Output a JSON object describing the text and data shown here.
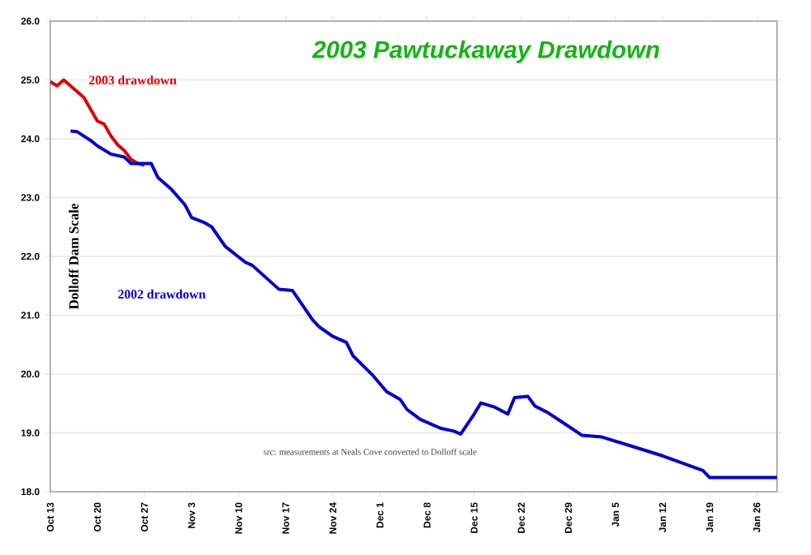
{
  "chart_data": {
    "type": "line",
    "title": "2003 Pawtuckaway Drawdown",
    "ylabel": "Dolloff Dam Scale",
    "annotations": [
      "src: measurements at Neals Cove converted to Dolloff scale"
    ],
    "series": [
      {
        "name": "2003 drawdown",
        "color": "#dd0000",
        "x": [
          "2002-10-13",
          "2002-10-14",
          "2002-10-15",
          "2002-10-18",
          "2002-10-19",
          "2002-10-20",
          "2002-10-21",
          "2002-10-22",
          "2002-10-23",
          "2002-10-24",
          "2002-10-25",
          "2002-10-26",
          "2002-10-27"
        ],
        "values": [
          24.97,
          24.9,
          25.0,
          24.7,
          24.5,
          24.3,
          24.25,
          24.05,
          23.9,
          23.8,
          23.65,
          23.58,
          23.55
        ]
      },
      {
        "name": "2002 drawdown",
        "color": "#0000cc",
        "x": [
          "2002-10-16",
          "2002-10-17",
          "2002-10-19",
          "2002-10-20",
          "2002-10-22",
          "2002-10-24",
          "2002-10-25",
          "2002-10-28",
          "2002-10-29",
          "2002-10-31",
          "2002-11-02",
          "2002-11-03",
          "2002-11-05",
          "2002-11-06",
          "2002-11-08",
          "2002-11-10",
          "2002-11-11",
          "2002-11-12",
          "2002-11-16",
          "2002-11-18",
          "2002-11-21",
          "2002-11-22",
          "2002-11-24",
          "2002-11-26",
          "2002-11-27",
          "2002-11-30",
          "2002-12-02",
          "2002-12-04",
          "2002-12-05",
          "2002-12-07",
          "2002-12-10",
          "2002-12-12",
          "2002-12-13",
          "2002-12-15",
          "2002-12-16",
          "2002-12-18",
          "2002-12-20",
          "2002-12-21",
          "2002-12-23",
          "2002-12-24",
          "2002-12-26",
          "2002-12-28",
          "2002-12-31",
          "2003-01-03",
          "2003-01-12",
          "2003-01-18",
          "2003-01-19",
          "2003-01-29"
        ],
        "values": [
          24.13,
          24.12,
          23.97,
          23.88,
          23.74,
          23.69,
          23.58,
          23.58,
          23.34,
          23.14,
          22.88,
          22.66,
          22.57,
          22.5,
          22.17,
          21.99,
          21.9,
          21.85,
          21.44,
          21.42,
          20.92,
          20.8,
          20.64,
          20.54,
          20.31,
          19.97,
          19.7,
          19.57,
          19.4,
          19.23,
          19.08,
          19.03,
          18.98,
          19.32,
          19.51,
          19.44,
          19.32,
          19.6,
          19.62,
          19.46,
          19.34,
          19.19,
          18.96,
          18.93,
          18.61,
          18.36,
          18.24,
          18.24
        ]
      }
    ],
    "xlim": [
      "2002-10-13",
      "2003-01-29"
    ],
    "xticks": [
      {
        "value": "2002-10-13",
        "label": "Oct 13"
      },
      {
        "value": "2002-10-20",
        "label": "Oct 20"
      },
      {
        "value": "2002-10-27",
        "label": "Oct 27"
      },
      {
        "value": "2002-11-03",
        "label": "Nov 3"
      },
      {
        "value": "2002-11-10",
        "label": "Nov 10"
      },
      {
        "value": "2002-11-17",
        "label": "Nov 17"
      },
      {
        "value": "2002-11-24",
        "label": "Nov 24"
      },
      {
        "value": "2002-12-01",
        "label": "Dec 1"
      },
      {
        "value": "2002-12-08",
        "label": "Dec 8"
      },
      {
        "value": "2002-12-15",
        "label": "Dec 15"
      },
      {
        "value": "2002-12-22",
        "label": "Dec 22"
      },
      {
        "value": "2002-12-29",
        "label": "Dec 29"
      },
      {
        "value": "2003-01-05",
        "label": "Jan 5"
      },
      {
        "value": "2003-01-12",
        "label": "Jan 12"
      },
      {
        "value": "2003-01-19",
        "label": "Jan 19"
      },
      {
        "value": "2003-01-26",
        "label": "Jan 26"
      }
    ],
    "ylim": [
      18,
      26
    ],
    "yticks": [
      {
        "value": 18,
        "label": "18.0"
      },
      {
        "value": 19,
        "label": "19.0"
      },
      {
        "value": 20,
        "label": "20.0"
      },
      {
        "value": 21,
        "label": "21.0"
      },
      {
        "value": 22,
        "label": "22.0"
      },
      {
        "value": 23,
        "label": "23.0"
      },
      {
        "value": 24,
        "label": "24.0"
      },
      {
        "value": 25,
        "label": "25.0"
      },
      {
        "value": 26,
        "label": "26.0"
      }
    ],
    "grid": "y",
    "marker": "none",
    "line_style": "solid"
  }
}
